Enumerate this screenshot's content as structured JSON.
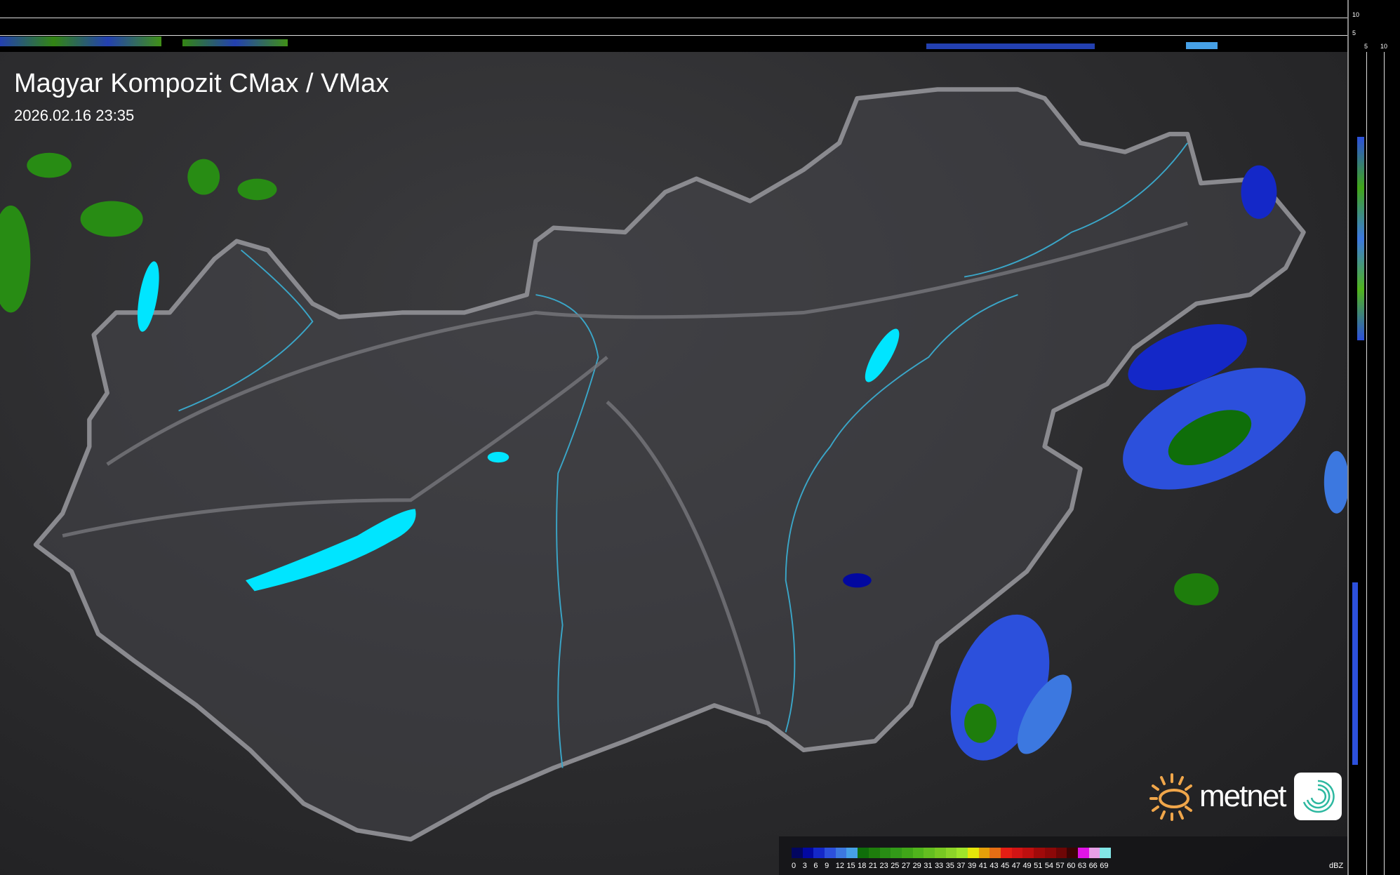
{
  "header": {
    "title": "Magyar Kompozit CMax / VMax",
    "timestamp": "2026.02.16 23:35"
  },
  "profile_axes": {
    "top_ticks": [
      "10",
      "5"
    ],
    "right_ticks": [
      "5",
      "10"
    ]
  },
  "legend": {
    "unit": "dBZ",
    "labels": [
      "0",
      "3",
      "6",
      "9",
      "12",
      "15",
      "18",
      "21",
      "23",
      "25",
      "27",
      "29",
      "31",
      "33",
      "35",
      "37",
      "39",
      "41",
      "43",
      "45",
      "47",
      "49",
      "51",
      "54",
      "57",
      "60",
      "63",
      "66",
      "69"
    ],
    "colors": [
      "#02065f",
      "#0208a0",
      "#1428c8",
      "#2c50dc",
      "#3c78e0",
      "#46a0e6",
      "#0f6e0a",
      "#1e7d0c",
      "#288c14",
      "#329a18",
      "#40a618",
      "#50b41c",
      "#64be20",
      "#78c822",
      "#8cd428",
      "#a0e42a",
      "#e6e60a",
      "#e6a00a",
      "#e66e14",
      "#e61e14",
      "#d21414",
      "#be0f0f",
      "#a00a0a",
      "#8c0808",
      "#6e0606",
      "#3c0404",
      "#e014e6",
      "#e6a0e6",
      "#82e6e6"
    ]
  },
  "logo": {
    "text": "metnet"
  },
  "colors": {
    "lake": "#00e5ff",
    "border": "#8a8a8f",
    "river": "#3aa6c8"
  }
}
